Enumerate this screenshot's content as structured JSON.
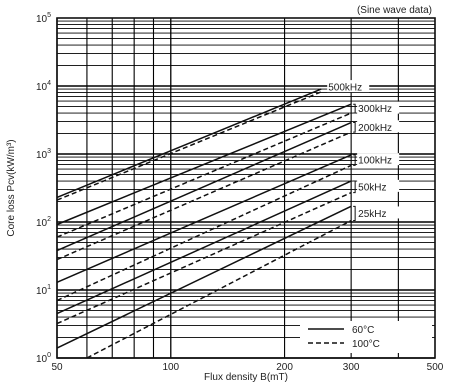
{
  "chart_data": {
    "type": "line",
    "title": "",
    "annotation": "(Sine wave data)",
    "xlabel": "Flux density B(mT)",
    "ylabel": "Core loss Pcv(kW/m³)",
    "x_scale": "log",
    "y_scale": "log",
    "xlim": [
      50,
      500
    ],
    "ylim": [
      1,
      100000
    ],
    "x_ticks": [
      50,
      100,
      200,
      300,
      500
    ],
    "y_ticks": [
      {
        "value": 1,
        "base": "10",
        "exp": "0"
      },
      {
        "value": 10,
        "base": "10",
        "exp": "1"
      },
      {
        "value": 100,
        "base": "10",
        "exp": "2"
      },
      {
        "value": 1000,
        "base": "10",
        "exp": "3"
      },
      {
        "value": 10000,
        "base": "10",
        "exp": "4"
      },
      {
        "value": 100000,
        "base": "10",
        "exp": "5"
      }
    ],
    "grid": true,
    "legend": {
      "position": "bottom-right",
      "items": [
        {
          "label": "60°C",
          "style": "solid"
        },
        {
          "label": "100°C",
          "style": "dashed"
        }
      ]
    },
    "frequency_labels": [
      "500kHz",
      "300kHz",
      "200kHz",
      "100kHz",
      "50kHz",
      "25kHz"
    ],
    "series": [
      {
        "frequency": "500kHz",
        "temperature": "60°C",
        "style": "solid",
        "x": [
          50,
          250
        ],
        "y": [
          230,
          9000
        ]
      },
      {
        "frequency": "500kHz",
        "temperature": "100°C",
        "style": "dashed",
        "x": [
          50,
          250
        ],
        "y": [
          210,
          8200
        ]
      },
      {
        "frequency": "300kHz",
        "temperature": "60°C",
        "style": "solid",
        "x": [
          50,
          300
        ],
        "y": [
          92,
          5400
        ]
      },
      {
        "frequency": "300kHz",
        "temperature": "100°C",
        "style": "dashed",
        "x": [
          50,
          300
        ],
        "y": [
          60,
          4000
        ]
      },
      {
        "frequency": "200kHz",
        "temperature": "60°C",
        "style": "solid",
        "x": [
          50,
          300
        ],
        "y": [
          38,
          2900
        ]
      },
      {
        "frequency": "200kHz",
        "temperature": "100°C",
        "style": "dashed",
        "x": [
          50,
          300
        ],
        "y": [
          28,
          2100
        ]
      },
      {
        "frequency": "100kHz",
        "temperature": "60°C",
        "style": "solid",
        "x": [
          50,
          300
        ],
        "y": [
          13,
          970
        ]
      },
      {
        "frequency": "100kHz",
        "temperature": "100°C",
        "style": "dashed",
        "x": [
          50,
          300
        ],
        "y": [
          7,
          680
        ]
      },
      {
        "frequency": "50kHz",
        "temperature": "60°C",
        "style": "solid",
        "x": [
          50,
          300
        ],
        "y": [
          4.5,
          400
        ]
      },
      {
        "frequency": "50kHz",
        "temperature": "100°C",
        "style": "dashed",
        "x": [
          50,
          300
        ],
        "y": [
          3.2,
          270
        ]
      },
      {
        "frequency": "25kHz",
        "temperature": "60°C",
        "style": "solid",
        "x": [
          50,
          300
        ],
        "y": [
          1.4,
          170
        ]
      },
      {
        "frequency": "25kHz",
        "temperature": "100°C",
        "style": "dashed",
        "x": [
          60,
          300
        ],
        "y": [
          1.0,
          105
        ]
      }
    ]
  }
}
